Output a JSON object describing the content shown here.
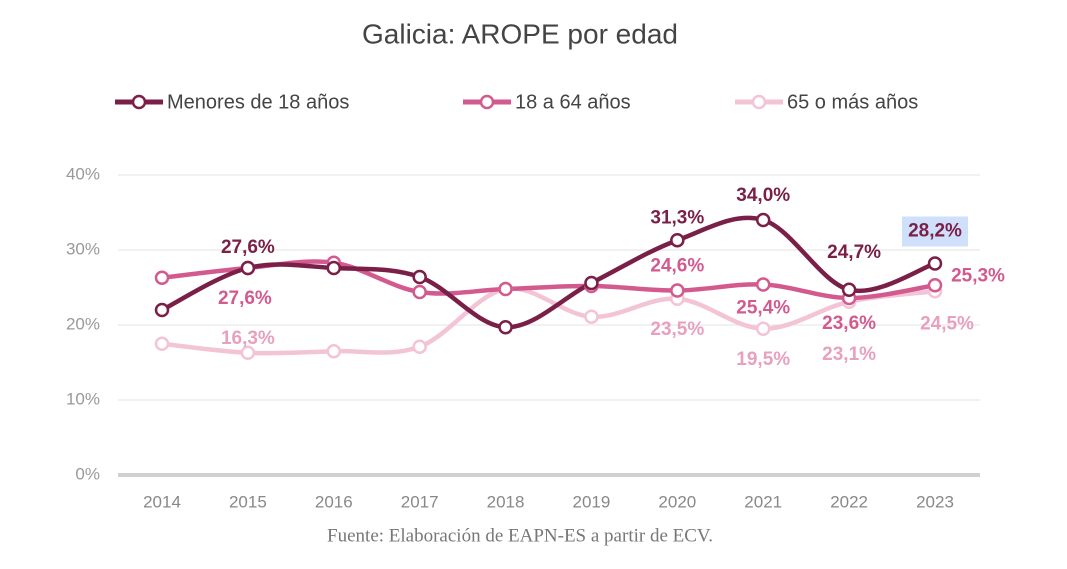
{
  "chart_data": {
    "type": "line",
    "title": "Galicia: AROPE por edad",
    "source": "Fuente: Elaboración de EAPN-ES a partir de ECV.",
    "categories": [
      "2014",
      "2015",
      "2016",
      "2017",
      "2018",
      "2019",
      "2020",
      "2021",
      "2022",
      "2023"
    ],
    "ylim": [
      0,
      40
    ],
    "yticks": [
      {
        "value": 0,
        "label": "0%"
      },
      {
        "value": 10,
        "label": "10%"
      },
      {
        "value": 20,
        "label": "20%"
      },
      {
        "value": 30,
        "label": "30%"
      },
      {
        "value": 40,
        "label": "40%"
      }
    ],
    "grid": true,
    "legend": "top",
    "series": [
      {
        "name": "Menores de 18 años",
        "color": "#7a1f47",
        "label_color": "#7a1f47",
        "values": [
          22.0,
          27.6,
          27.6,
          26.4,
          19.7,
          25.6,
          31.3,
          34.0,
          24.7,
          28.2
        ],
        "value_labels": [
          null,
          "27,6%",
          null,
          null,
          null,
          null,
          "31,3%",
          "34,0%",
          "24,7%",
          "28,2%"
        ]
      },
      {
        "name": "18 a 64 años",
        "color": "#d35a8e",
        "label_color": "#d35a8e",
        "values": [
          26.3,
          27.6,
          28.3,
          24.4,
          24.8,
          25.2,
          24.6,
          25.4,
          23.6,
          25.3
        ],
        "value_labels": [
          null,
          "27,6%",
          null,
          null,
          null,
          null,
          "24,6%",
          "25,4%",
          "23,6%",
          "25,3%"
        ]
      },
      {
        "name": "65 o más años",
        "color": "#f3c4d6",
        "label_color": "#e8a0bf",
        "values": [
          17.5,
          16.3,
          16.5,
          17.1,
          24.8,
          21.1,
          23.5,
          19.5,
          23.1,
          24.5
        ],
        "value_labels": [
          null,
          "16,3%",
          null,
          null,
          null,
          null,
          "23,5%",
          "19,5%",
          "23,1%",
          "24,5%"
        ]
      }
    ]
  }
}
